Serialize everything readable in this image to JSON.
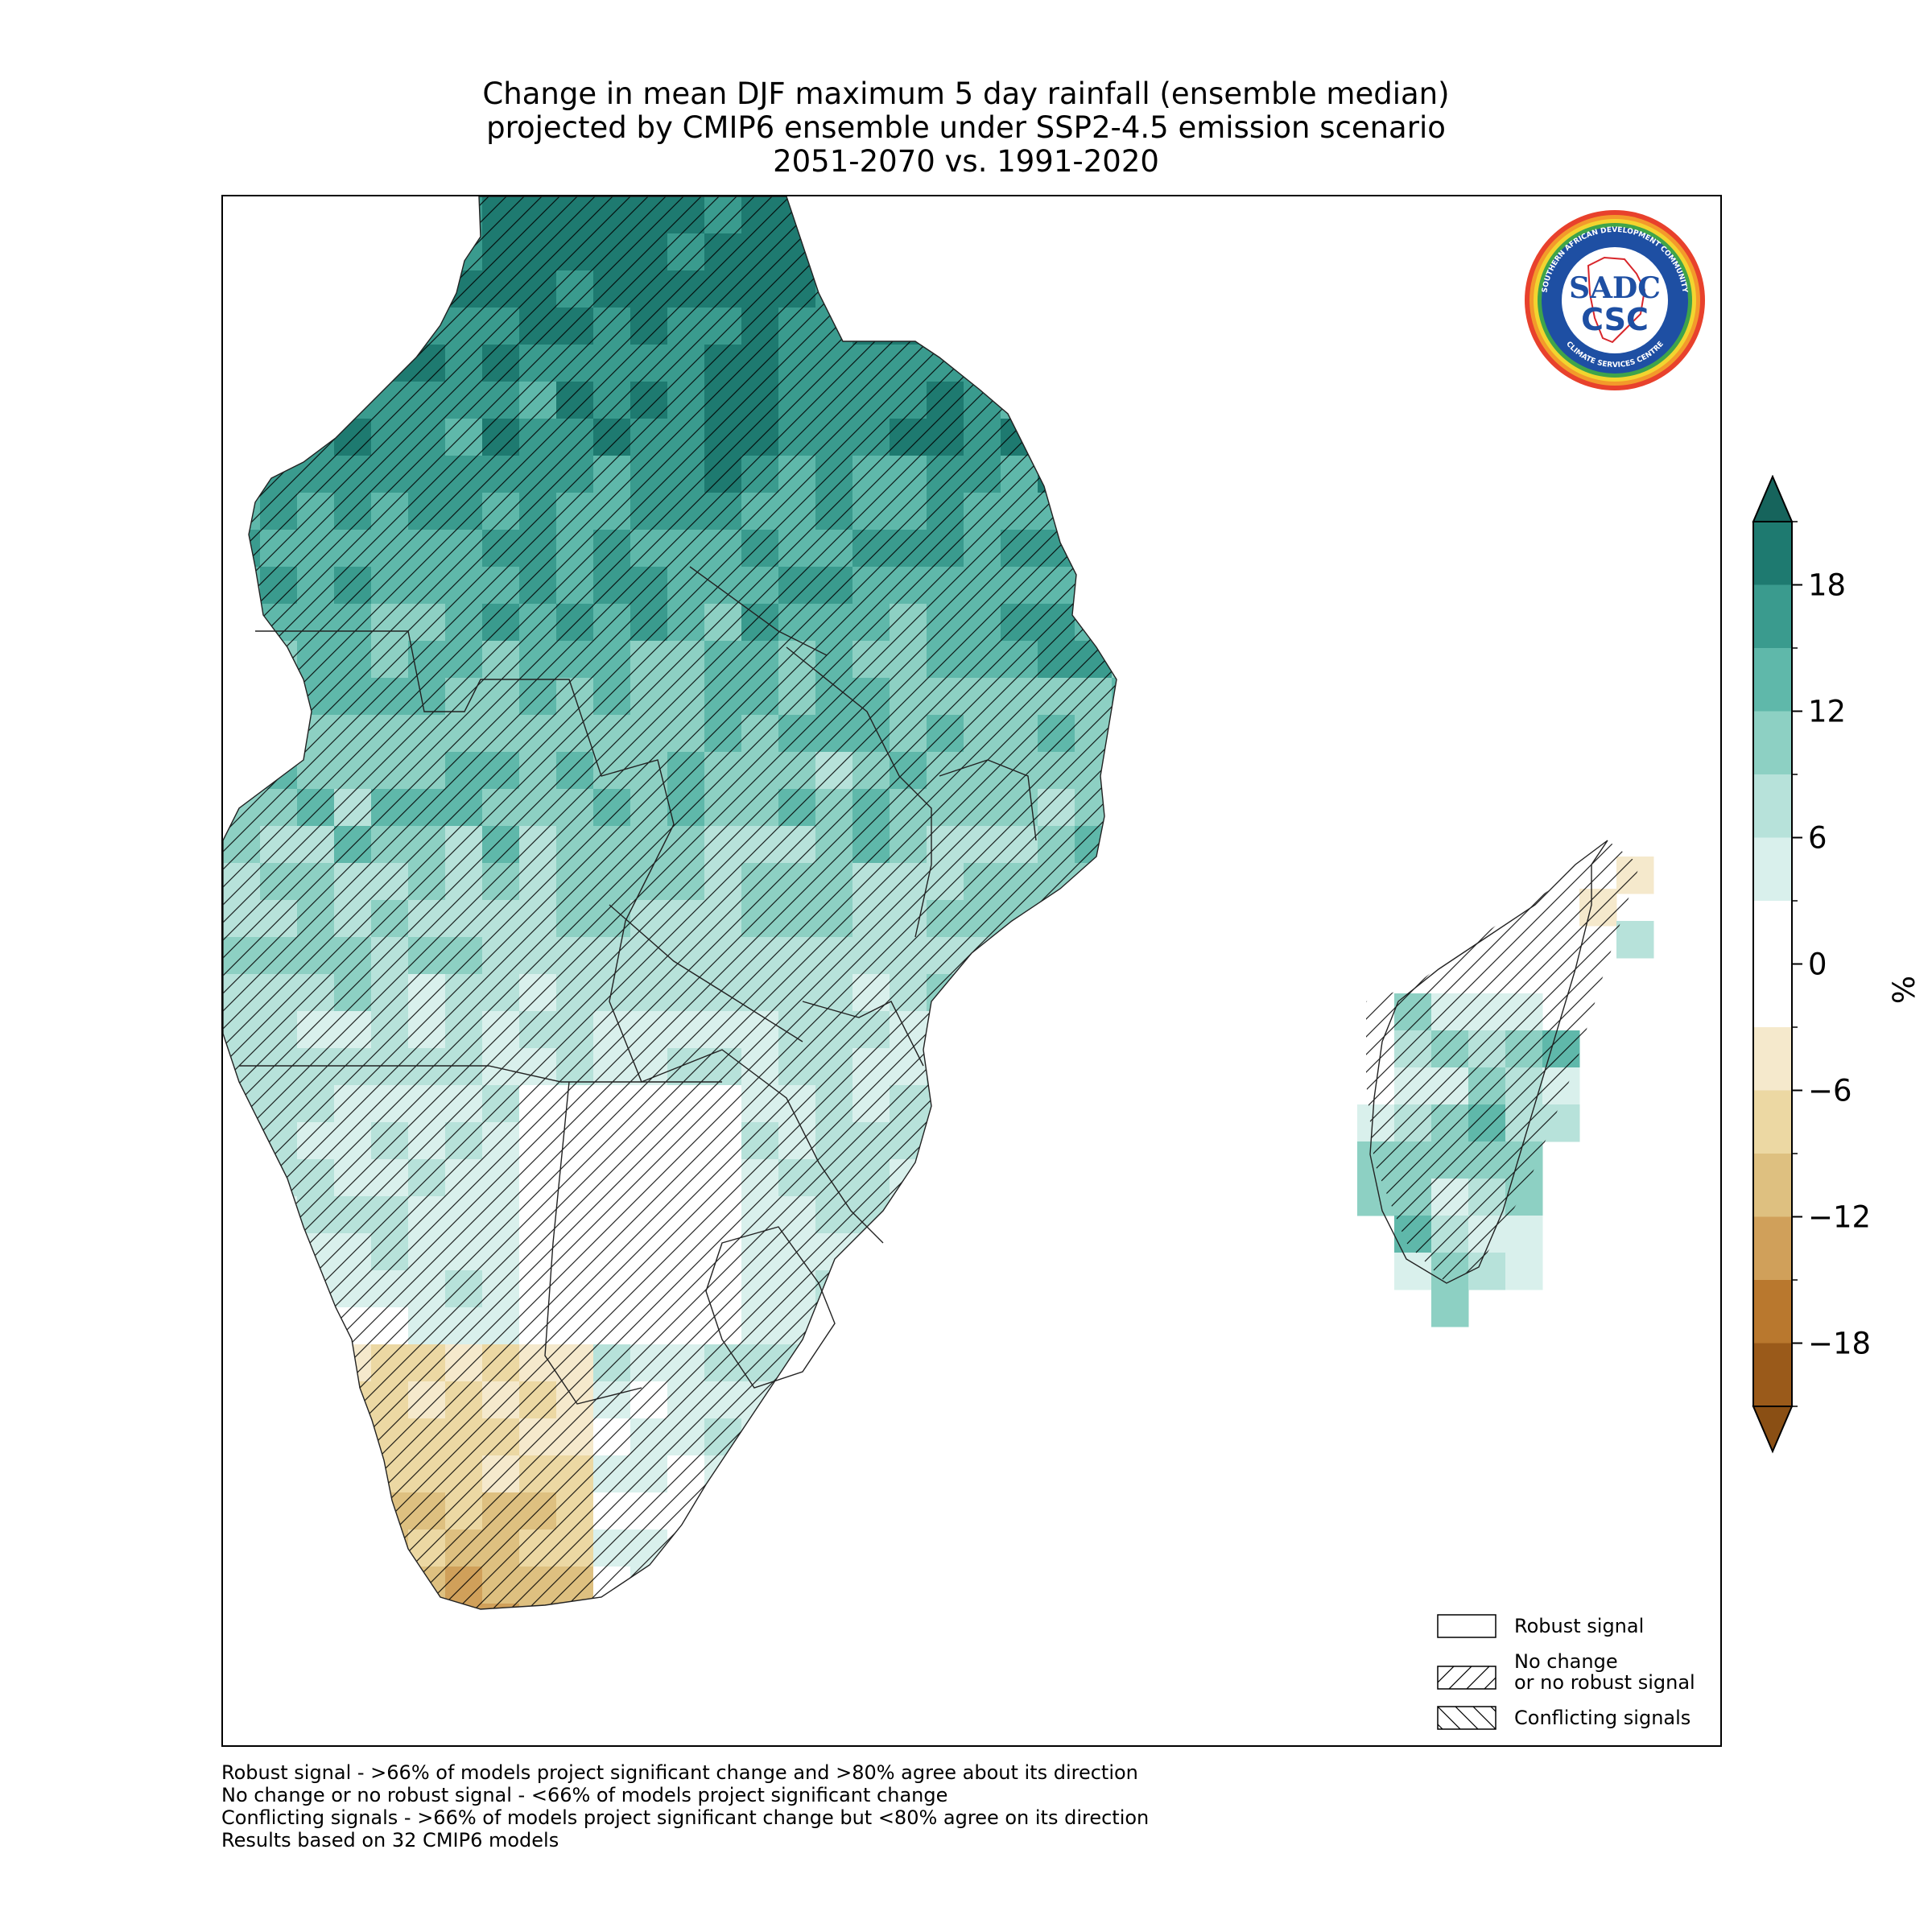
{
  "title_lines": [
    "Change in mean DJF maximum 5 day rainfall (ensemble median)",
    "projected by CMIP6 ensemble under SSP2-4.5 emission scenario",
    "2051-2070 vs. 1991-2020"
  ],
  "logo": {
    "name": "sadc-csc-logo",
    "text_main": "CSC",
    "text_sadc": "SADC",
    "text_ring_top": "SOUTHERN AFRICAN DEVELOPMENT COMMUNITY",
    "text_ring_bottom": "CLIMATE SERVICES CENTRE"
  },
  "colorbar": {
    "unit": "%",
    "tick_labels": [
      "18",
      "12",
      "6",
      "0",
      "−6",
      "−12",
      "−18"
    ],
    "tick_values": [
      18,
      12,
      6,
      0,
      -6,
      -12,
      -18
    ],
    "range": [
      -21,
      21
    ],
    "extend": "both",
    "colors_high_to_low": [
      "#1e7a70",
      "#3a9b8e",
      "#5fb8aa",
      "#8dd0c3",
      "#b7e2da",
      "#d9f0ec",
      "#ffffff",
      "#ffffff",
      "#f5e9cc",
      "#ecd8a3",
      "#dec080",
      "#d0a05a",
      "#b9782e",
      "#9a5a1a"
    ],
    "extend_top_color": "#16645c",
    "extend_bottom_color": "#8a4f14"
  },
  "legend": [
    {
      "label": "Robust signal",
      "pattern": "none"
    },
    {
      "label": "No change",
      "label2": "or no robust signal",
      "pattern": "forward-hatch"
    },
    {
      "label": "Conflicting signals",
      "pattern": "back-hatch"
    }
  ],
  "footnotes": [
    "Robust signal - >66% of models project significant change and >80% agree about its direction",
    "No change or no robust signal - <66% of models project significant change",
    "Conflicting signals - >66% of models project significant change but <80% agree on its direction",
    "Results based on 32 CMIP6 models"
  ],
  "map_data": {
    "variable": "Change in mean DJF maximum 5 day rainfall",
    "units": "%",
    "region": "Southern Africa (SADC)",
    "pattern": {
      "north": "strong increase (+12 to +21%)",
      "centre": "moderate increase (+3 to +12%)",
      "south_west": "decrease (−3 to −18%)",
      "madagascar": "increase (+3 to +15%)"
    }
  }
}
